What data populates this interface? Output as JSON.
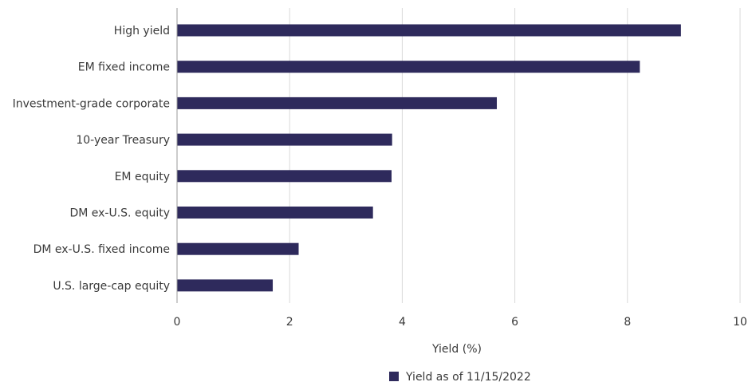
{
  "chart_data": {
    "type": "bar",
    "orientation": "horizontal",
    "categories": [
      "High yield",
      "EM fixed income",
      "Investment-grade corporate",
      "10-year Treasury",
      "EM equity",
      "DM ex-U.S. equity",
      "DM ex-U.S. fixed income",
      "U.S. large-cap equity"
    ],
    "series": [
      {
        "name": "Yield as of 11/15/2022",
        "color": "#2e2a5c",
        "values": [
          8.95,
          8.22,
          5.68,
          3.82,
          3.81,
          3.48,
          2.16,
          1.7
        ]
      }
    ],
    "xlabel": "Yield (%)",
    "ylabel": "",
    "xlim": [
      0,
      10
    ],
    "xticks": [
      "0",
      "2",
      "4",
      "6",
      "8",
      "10"
    ],
    "grid": "vertical",
    "legend_position": "bottom-center"
  }
}
